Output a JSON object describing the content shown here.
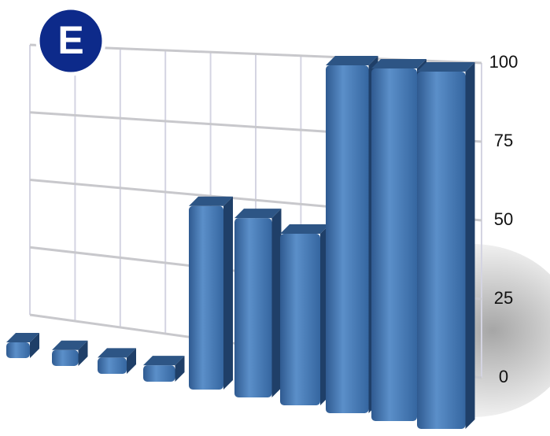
{
  "chart_data": {
    "type": "bar3d",
    "annotation": "E",
    "categories": [
      null,
      null,
      null,
      null,
      null,
      null,
      null,
      null,
      null,
      null
    ],
    "values": [
      5,
      5,
      5,
      5,
      55,
      53,
      50,
      100,
      100,
      100
    ],
    "color": "#3f6fa8",
    "ylim": [
      0,
      100
    ],
    "yticks": [
      0,
      25,
      50,
      75,
      100
    ],
    "grid": true
  }
}
